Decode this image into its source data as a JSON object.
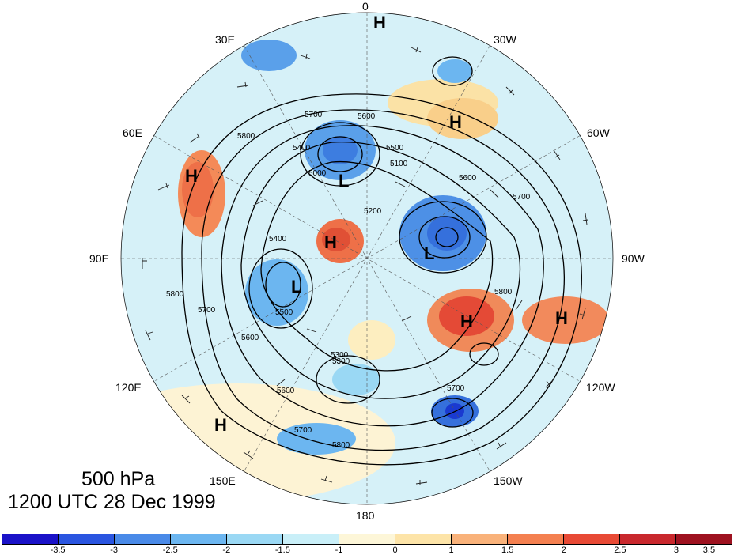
{
  "map": {
    "level_label": "500 hPa",
    "time_label": "1200 UTC 28 Dec 1999",
    "longitude_labels": [
      {
        "key": "lon-0",
        "text": "0"
      },
      {
        "key": "lon-30w",
        "text": "30W"
      },
      {
        "key": "lon-60w",
        "text": "60W"
      },
      {
        "key": "lon-90w",
        "text": "90W"
      },
      {
        "key": "lon-120w",
        "text": "120W"
      },
      {
        "key": "lon-150w",
        "text": "150W"
      },
      {
        "key": "lon-180",
        "text": "180"
      },
      {
        "key": "lon-150e",
        "text": "150E"
      },
      {
        "key": "lon-120e",
        "text": "120E"
      },
      {
        "key": "lon-90e",
        "text": "90E"
      },
      {
        "key": "lon-60e",
        "text": "60E"
      },
      {
        "key": "lon-30e",
        "text": "30E"
      }
    ],
    "pressure_centers": [
      {
        "type": "H",
        "label": "H"
      },
      {
        "type": "H",
        "label": "H"
      },
      {
        "type": "H",
        "label": "H"
      },
      {
        "type": "H",
        "label": "H"
      },
      {
        "type": "H",
        "label": "H"
      },
      {
        "type": "H",
        "label": "H"
      },
      {
        "type": "H",
        "label": "H"
      },
      {
        "type": "L",
        "label": "L"
      },
      {
        "type": "L",
        "label": "L"
      },
      {
        "type": "L",
        "label": "L"
      }
    ],
    "contour_labels": [
      "5700",
      "5800",
      "5600",
      "5500",
      "5400",
      "5300",
      "5200",
      "5000",
      "5100",
      "5400",
      "5500",
      "5600",
      "5700",
      "5800",
      "5700",
      "5600",
      "5700",
      "5800",
      "5300",
      "5600",
      "5700",
      "5800"
    ]
  },
  "colorbar": {
    "colors": [
      "#1a12c8",
      "#2a55e0",
      "#4a8ae8",
      "#6cb6f0",
      "#9ad8f4",
      "#c9eff8",
      "#fdf6d8",
      "#fde4a8",
      "#f9b27a",
      "#f48050",
      "#e84a35",
      "#c9282d",
      "#9e1220"
    ],
    "tick_labels": [
      "-3.5",
      "-3",
      "-2.5",
      "-2",
      "-1.5",
      "-1",
      "0",
      "1",
      "1.5",
      "2",
      "2.5",
      "3",
      "3.5"
    ]
  }
}
